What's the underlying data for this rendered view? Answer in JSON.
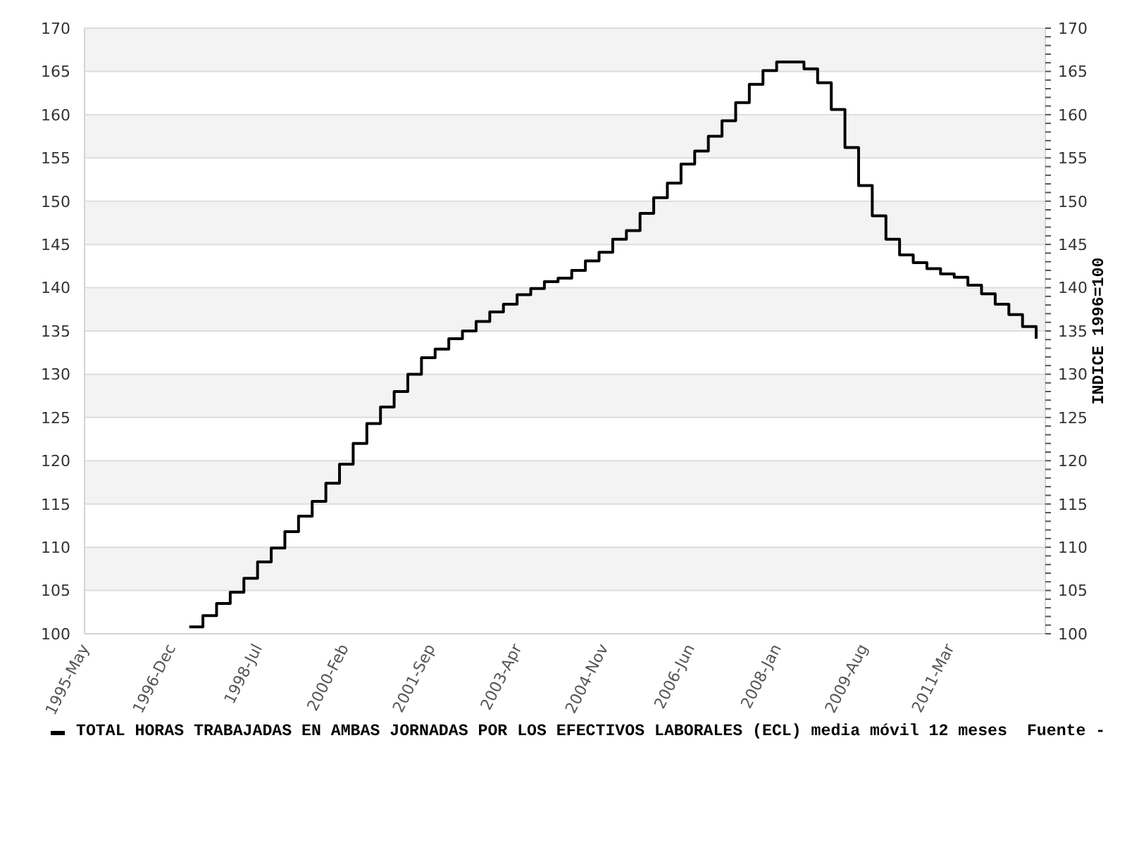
{
  "chart_data": {
    "type": "step",
    "x": [
      "1997-04",
      "1997-07",
      "1997-10",
      "1998-01",
      "1998-04",
      "1998-07",
      "1998-10",
      "1999-01",
      "1999-04",
      "1999-07",
      "1999-10",
      "2000-01",
      "2000-04",
      "2000-07",
      "2000-10",
      "2001-01",
      "2001-04",
      "2001-07",
      "2001-10",
      "2002-01",
      "2002-04",
      "2002-07",
      "2002-10",
      "2003-01",
      "2003-04",
      "2003-07",
      "2003-10",
      "2004-01",
      "2004-04",
      "2004-07",
      "2004-10",
      "2005-01",
      "2005-04",
      "2005-07",
      "2005-10",
      "2006-01",
      "2006-04",
      "2006-07",
      "2006-10",
      "2007-01",
      "2007-04",
      "2007-07",
      "2007-10",
      "2008-01",
      "2008-04",
      "2008-07",
      "2008-10",
      "2009-01",
      "2009-04",
      "2009-07",
      "2009-10",
      "2010-01",
      "2010-04",
      "2010-07",
      "2010-10",
      "2011-01",
      "2011-04",
      "2011-07",
      "2011-10",
      "2012-01",
      "2012-04",
      "2012-07",
      "2012-10"
    ],
    "series": [
      {
        "name": "TOTAL HORAS TRABAJADAS EN AMBAS JORNADAS POR LOS EFECTIVOS LABORALES (ECL) media móvil 12 meses",
        "color": "#000000",
        "values": [
          100.8,
          102.1,
          103.5,
          104.8,
          106.4,
          108.3,
          109.9,
          111.8,
          113.6,
          115.3,
          117.4,
          119.6,
          122.0,
          124.3,
          126.2,
          128.0,
          130.0,
          131.9,
          132.9,
          134.1,
          135.0,
          136.1,
          137.2,
          138.1,
          139.2,
          139.9,
          140.7,
          141.1,
          142.0,
          143.1,
          144.1,
          145.6,
          146.6,
          148.6,
          150.4,
          152.1,
          154.3,
          155.8,
          157.5,
          159.3,
          161.4,
          163.5,
          165.1,
          166.1,
          166.1,
          165.3,
          163.7,
          160.6,
          156.2,
          151.8,
          148.3,
          145.6,
          143.8,
          142.9,
          142.2,
          141.6,
          141.2,
          140.3,
          139.3,
          138.1,
          136.9,
          135.5,
          134.1
        ]
      }
    ],
    "xlim": [
      "1995-05",
      "2012-12"
    ],
    "xticks": [
      {
        "value": "1995-05",
        "label": "1995-May"
      },
      {
        "value": "1996-12",
        "label": "1996-Dec"
      },
      {
        "value": "1998-07",
        "label": "1998-Jul"
      },
      {
        "value": "2000-02",
        "label": "2000-Feb"
      },
      {
        "value": "2001-09",
        "label": "2001-Sep"
      },
      {
        "value": "2003-04",
        "label": "2003-Apr"
      },
      {
        "value": "2004-11",
        "label": "2004-Nov"
      },
      {
        "value": "2006-06",
        "label": "2006-Jun"
      },
      {
        "value": "2008-01",
        "label": "2008-Jan"
      },
      {
        "value": "2009-08",
        "label": "2009-Aug"
      },
      {
        "value": "2011-03",
        "label": "2011-Mar"
      }
    ],
    "ylim": [
      100,
      170
    ],
    "yticks": [
      100,
      105,
      110,
      115,
      120,
      125,
      130,
      135,
      140,
      145,
      150,
      155,
      160,
      165,
      170
    ],
    "y2lim": [
      100,
      170
    ],
    "y2ticks": [
      100,
      {
        "value": 101,
        "label": null
      },
      {
        "value": 102,
        "label": null
      },
      {
        "value": 103,
        "label": null
      },
      {
        "value": 104,
        "label": null
      },
      105,
      {
        "value": 106,
        "label": null
      },
      {
        "value": 107,
        "label": null
      },
      {
        "value": 108,
        "label": null
      },
      {
        "value": 109,
        "label": null
      },
      110,
      {
        "value": 111,
        "label": null
      },
      {
        "value": 112,
        "label": null
      },
      {
        "value": 113,
        "label": null
      },
      {
        "value": 114,
        "label": null
      },
      115,
      {
        "value": 116,
        "label": null
      },
      {
        "value": 117,
        "label": null
      },
      {
        "value": 118,
        "label": null
      },
      {
        "value": 119,
        "label": null
      },
      120,
      {
        "value": 121,
        "label": null
      },
      {
        "value": 122,
        "label": null
      },
      {
        "value": 123,
        "label": null
      },
      {
        "value": 124,
        "label": null
      },
      125,
      {
        "value": 126,
        "label": null
      },
      {
        "value": 127,
        "label": null
      },
      {
        "value": 128,
        "label": null
      },
      {
        "value": 129,
        "label": null
      },
      130,
      {
        "value": 131,
        "label": null
      },
      {
        "value": 132,
        "label": null
      },
      {
        "value": 133,
        "label": null
      },
      {
        "value": 134,
        "label": null
      },
      135,
      {
        "value": 136,
        "label": null
      },
      {
        "value": 137,
        "label": null
      },
      {
        "value": 138,
        "label": null
      },
      {
        "value": 139,
        "label": null
      },
      140,
      {
        "value": 141,
        "label": null
      },
      {
        "value": 142,
        "label": null
      },
      {
        "value": 143,
        "label": null
      },
      {
        "value": 144,
        "label": null
      },
      145,
      {
        "value": 146,
        "label": null
      },
      {
        "value": 147,
        "label": null
      },
      {
        "value": 148,
        "label": null
      },
      {
        "value": 149,
        "label": null
      },
      150,
      {
        "value": 151,
        "label": null
      },
      {
        "value": 152,
        "label": null
      },
      {
        "value": 153,
        "label": null
      },
      {
        "value": 154,
        "label": null
      },
      155,
      {
        "value": 156,
        "label": null
      },
      {
        "value": 157,
        "label": null
      },
      {
        "value": 158,
        "label": null
      },
      {
        "value": 159,
        "label": null
      },
      160,
      {
        "value": 161,
        "label": null
      },
      {
        "value": 162,
        "label": null
      },
      {
        "value": 163,
        "label": null
      },
      {
        "value": 164,
        "label": null
      },
      165,
      {
        "value": 166,
        "label": null
      },
      {
        "value": 167,
        "label": null
      },
      {
        "value": 168,
        "label": null
      },
      {
        "value": 169,
        "label": null
      },
      170
    ],
    "y2label": "INDICE 1996=100",
    "grid": "y",
    "legend": "bottom",
    "annotations": [
      "Fuente -"
    ]
  }
}
